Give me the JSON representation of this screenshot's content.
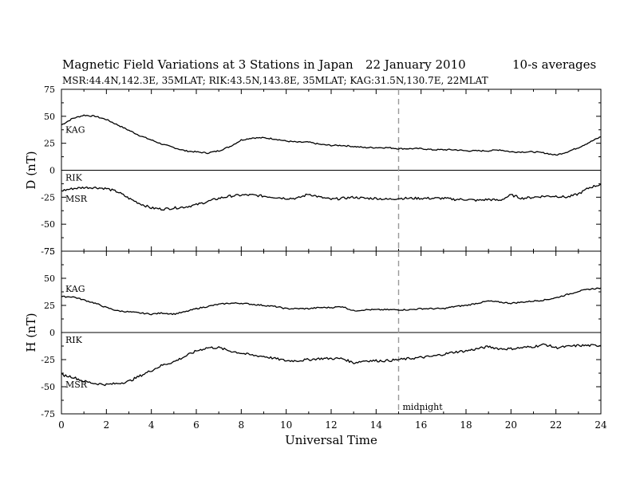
{
  "header": {
    "title": "Magnetic Field Variations at 3 Stations in Japan",
    "date": "22 January 2010",
    "averaging": "10-s averages",
    "stations": "MSR:44.4N,142.3E, 35MLAT;  RIK:43.5N,143.8E, 35MLAT;  KAG:31.5N,130.7E, 22MLAT"
  },
  "chart_data": [
    {
      "type": "line",
      "panel": "D",
      "ylabel": "D (nT)",
      "xlabel": "",
      "xlim": [
        0,
        24
      ],
      "ylim": [
        -75,
        75
      ],
      "yticks": [
        75,
        50,
        25,
        0,
        -25,
        -50,
        -75
      ],
      "xticks": [
        0,
        2,
        4,
        6,
        8,
        10,
        12,
        14,
        16,
        18,
        20,
        22,
        24
      ],
      "labels": {
        "kag": "KAG",
        "rik": "RIK",
        "msr": "MSR"
      },
      "series": [
        {
          "name": "KAG",
          "color": "#000000",
          "x": [
            0,
            0.5,
            1,
            1.5,
            2,
            2.5,
            3,
            3.5,
            4,
            4.5,
            5,
            5.5,
            6,
            6.5,
            7,
            7.5,
            8,
            8.5,
            9,
            9.5,
            10,
            10.5,
            11,
            11.5,
            12,
            12.5,
            13,
            13.5,
            14,
            14.5,
            15,
            15.5,
            16,
            16.5,
            17,
            17.5,
            18,
            18.5,
            19,
            19.5,
            20,
            20.5,
            21,
            21.5,
            22,
            22.5,
            23,
            23.5,
            24
          ],
          "y": [
            42,
            48,
            51,
            50,
            47,
            42,
            37,
            32,
            28,
            24,
            21,
            18,
            17,
            16,
            18,
            22,
            28,
            30,
            30,
            29,
            27,
            26,
            26,
            24,
            23,
            23,
            22,
            21,
            21,
            21,
            20,
            20,
            20,
            19,
            19,
            19,
            18,
            18,
            18,
            19,
            17,
            17,
            17,
            16,
            14,
            17,
            21,
            26,
            31
          ]
        },
        {
          "name": "RIK",
          "color": "#000000",
          "x": [
            0
          ],
          "y": [
            0
          ]
        },
        {
          "name": "MSR",
          "color": "#000000",
          "x": [
            0,
            0.5,
            1,
            1.5,
            2,
            2.5,
            3,
            3.5,
            4,
            4.5,
            5,
            5.5,
            6,
            6.5,
            7,
            7.5,
            8,
            8.5,
            9,
            9.5,
            10,
            10.5,
            11,
            11.5,
            12,
            12.5,
            13,
            13.5,
            14,
            14.5,
            15,
            15.5,
            16,
            16.5,
            17,
            17.5,
            18,
            18.5,
            19,
            19.5,
            20,
            20.5,
            21,
            21.5,
            22,
            22.5,
            23,
            23.5,
            24
          ],
          "y": [
            -19,
            -17,
            -16,
            -16,
            -17,
            -20,
            -26,
            -31,
            -35,
            -36,
            -35,
            -34,
            -32,
            -29,
            -26,
            -24,
            -23,
            -23,
            -24,
            -25,
            -26,
            -26,
            -22,
            -25,
            -27,
            -26,
            -25,
            -26,
            -26,
            -27,
            -26,
            -26,
            -26,
            -26,
            -26,
            -27,
            -27,
            -28,
            -27,
            -28,
            -23,
            -26,
            -25,
            -24,
            -24,
            -25,
            -22,
            -16,
            -13
          ]
        }
      ],
      "annotations": {
        "vline_x": 15,
        "vline_style": "dashed"
      }
    },
    {
      "type": "line",
      "panel": "H",
      "ylabel": "H (nT)",
      "xlabel": "Universal Time",
      "xlim": [
        0,
        24
      ],
      "ylim": [
        -75,
        75
      ],
      "yticks": [
        75,
        50,
        25,
        0,
        -25,
        -50,
        -75
      ],
      "xticks": [
        0,
        2,
        4,
        6,
        8,
        10,
        12,
        14,
        16,
        18,
        20,
        22,
        24
      ],
      "xtick_labels": [
        "0",
        "2",
        "4",
        "6",
        "8",
        "10",
        "12",
        "14",
        "16",
        "18",
        "20",
        "22",
        "24"
      ],
      "labels": {
        "kag": "KAG",
        "rik": "RIK",
        "msr": "MSR"
      },
      "series": [
        {
          "name": "KAG",
          "color": "#000000",
          "x": [
            0,
            0.5,
            1,
            1.5,
            2,
            2.5,
            3,
            3.5,
            4,
            4.5,
            5,
            5.5,
            6,
            6.5,
            7,
            7.5,
            8,
            8.5,
            9,
            9.5,
            10,
            10.5,
            11,
            11.5,
            12,
            12.5,
            13,
            13.5,
            14,
            14.5,
            15,
            15.5,
            16,
            16.5,
            17,
            17.5,
            18,
            18.5,
            19,
            19.5,
            20,
            20.5,
            21,
            21.5,
            22,
            22.5,
            23,
            23.5,
            24
          ],
          "y": [
            33,
            33,
            30,
            27,
            23,
            20,
            19,
            18,
            17,
            18,
            17,
            19,
            22,
            24,
            26,
            27,
            27,
            26,
            25,
            24,
            22,
            22,
            22,
            23,
            23,
            24,
            20,
            21,
            21,
            21,
            21,
            21,
            22,
            22,
            22,
            24,
            25,
            27,
            29,
            28,
            27,
            28,
            29,
            30,
            32,
            35,
            38,
            40,
            41
          ]
        },
        {
          "name": "RIK",
          "color": "#000000",
          "x": [
            0
          ],
          "y": [
            0
          ]
        },
        {
          "name": "MSR",
          "color": "#000000",
          "x": [
            0,
            0.5,
            1,
            1.5,
            2,
            2.5,
            3,
            3.5,
            4,
            4.5,
            5,
            5.5,
            6,
            6.5,
            7,
            7.5,
            8,
            8.5,
            9,
            9.5,
            10,
            10.5,
            11,
            11.5,
            12,
            12.5,
            13,
            13.5,
            14,
            14.5,
            15,
            15.5,
            16,
            16.5,
            17,
            17.5,
            18,
            18.5,
            19,
            19.5,
            20,
            20.5,
            21,
            21.5,
            22,
            22.5,
            23,
            23.5,
            24
          ],
          "y": [
            -39,
            -41,
            -45,
            -47,
            -48,
            -47,
            -45,
            -40,
            -35,
            -30,
            -27,
            -22,
            -17,
            -14,
            -14,
            -17,
            -19,
            -21,
            -22,
            -24,
            -26,
            -26,
            -25,
            -24,
            -24,
            -24,
            -28,
            -26,
            -26,
            -26,
            -25,
            -24,
            -23,
            -22,
            -20,
            -18,
            -17,
            -15,
            -13,
            -15,
            -15,
            -14,
            -13,
            -11,
            -14,
            -13,
            -12,
            -12,
            -12
          ]
        }
      ],
      "annotations": {
        "vline_x": 15,
        "vline_style": "dashed",
        "vline_label": "midnight"
      }
    }
  ]
}
